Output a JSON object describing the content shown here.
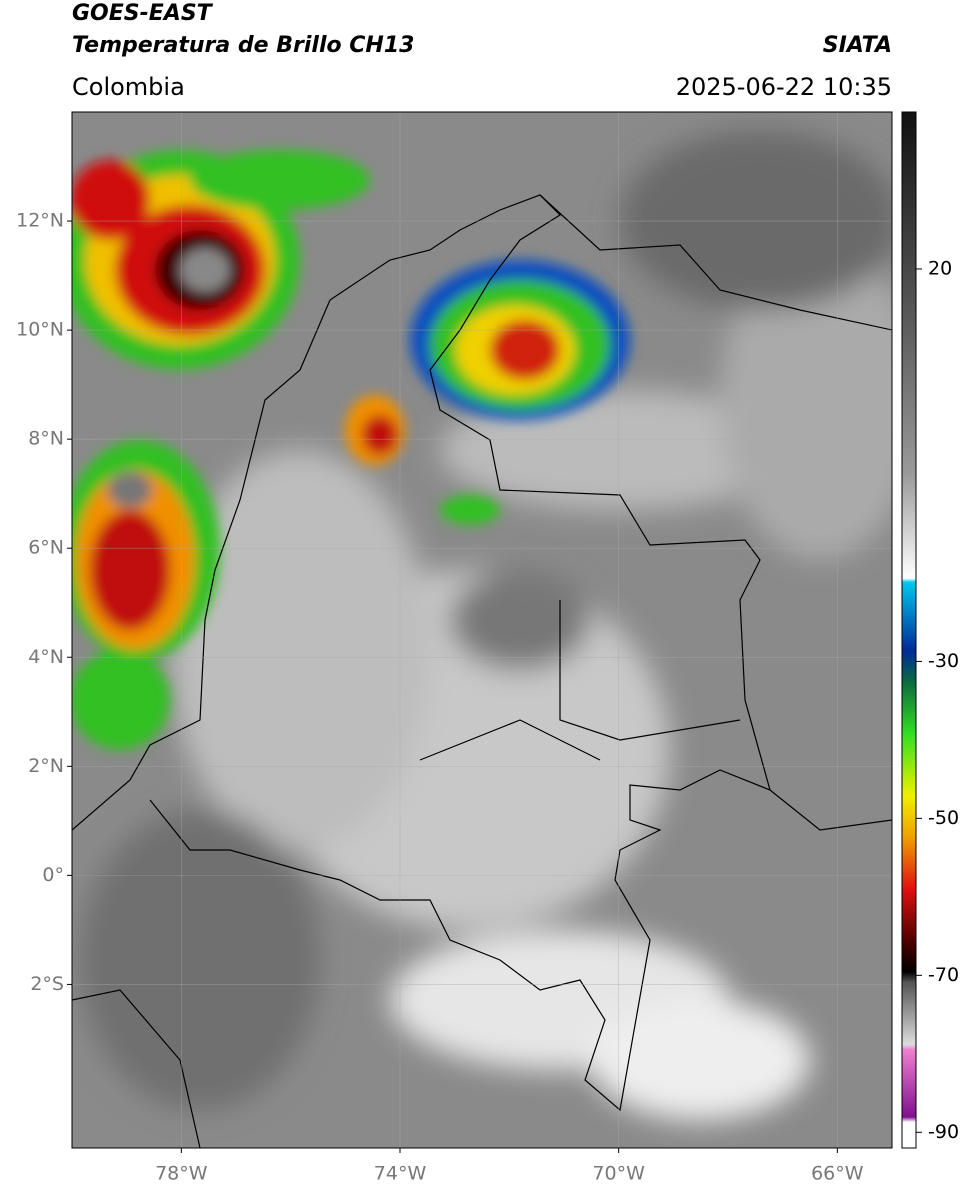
{
  "header": {
    "title": "GOES-EAST",
    "subtitle": "Temperatura de Brillo CH13",
    "region": "Colombia",
    "source": "SIATA",
    "datetime": "2025-06-22 10:35"
  },
  "map": {
    "xlim": [
      -80,
      -65
    ],
    "ylim": [
      -5,
      14
    ],
    "xticks": [
      {
        "value": -78,
        "label": "78°W"
      },
      {
        "value": -74,
        "label": "74°W"
      },
      {
        "value": -70,
        "label": "70°W"
      },
      {
        "value": -66,
        "label": "66°W"
      }
    ],
    "yticks": [
      {
        "value": 12,
        "label": "12°N"
      },
      {
        "value": 10,
        "label": "10°N"
      },
      {
        "value": 8,
        "label": "8°N"
      },
      {
        "value": 6,
        "label": "6°N"
      },
      {
        "value": 4,
        "label": "4°N"
      },
      {
        "value": 2,
        "label": "2°N"
      },
      {
        "value": 0,
        "label": "0°"
      },
      {
        "value": -2,
        "label": "2°S"
      }
    ]
  },
  "colorbar": {
    "lim": [
      -92,
      40
    ],
    "ticks": [
      20,
      -30,
      -50,
      -70,
      -90
    ]
  }
}
